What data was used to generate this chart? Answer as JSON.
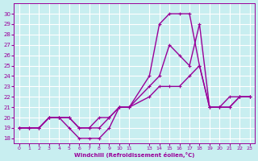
{
  "xlabel": "Windchill (Refroidissement éolien,°C)",
  "bg_color": "#c8eef0",
  "grid_color": "#ffffff",
  "line_color": "#990099",
  "xlim": [
    -0.5,
    23.5
  ],
  "ylim": [
    17.5,
    31
  ],
  "xticks": [
    0,
    1,
    2,
    3,
    4,
    5,
    6,
    7,
    8,
    9,
    10,
    11,
    13,
    14,
    15,
    16,
    17,
    18,
    19,
    20,
    21,
    22,
    23
  ],
  "yticks": [
    18,
    19,
    20,
    21,
    22,
    23,
    24,
    25,
    26,
    27,
    28,
    29,
    30
  ],
  "line1_x": [
    0,
    1,
    2,
    3,
    4,
    5,
    6,
    7,
    8,
    9,
    10,
    11,
    13,
    14,
    15,
    16,
    17,
    18,
    19,
    20,
    21,
    22,
    23
  ],
  "line1_y": [
    19,
    19,
    19,
    20,
    20,
    19,
    18,
    18,
    18,
    19,
    21,
    21,
    24,
    29,
    30,
    30,
    30,
    25,
    21,
    21,
    22,
    22,
    22
  ],
  "line2_x": [
    0,
    1,
    2,
    3,
    4,
    5,
    6,
    7,
    8,
    9,
    10,
    11,
    13,
    14,
    15,
    16,
    17,
    18,
    19,
    20,
    21,
    22,
    23
  ],
  "line2_y": [
    19,
    19,
    19,
    20,
    20,
    20,
    19,
    19,
    19,
    20,
    21,
    21,
    23,
    24,
    27,
    26,
    25,
    29,
    21,
    21,
    21,
    22,
    22
  ],
  "line3_x": [
    0,
    1,
    2,
    3,
    4,
    5,
    6,
    7,
    8,
    9,
    10,
    11,
    13,
    14,
    15,
    16,
    17,
    18,
    19,
    20,
    21,
    22,
    23
  ],
  "line3_y": [
    19,
    19,
    19,
    20,
    20,
    20,
    19,
    19,
    20,
    20,
    21,
    21,
    22,
    23,
    23,
    23,
    24,
    25,
    21,
    21,
    21,
    22,
    22
  ]
}
